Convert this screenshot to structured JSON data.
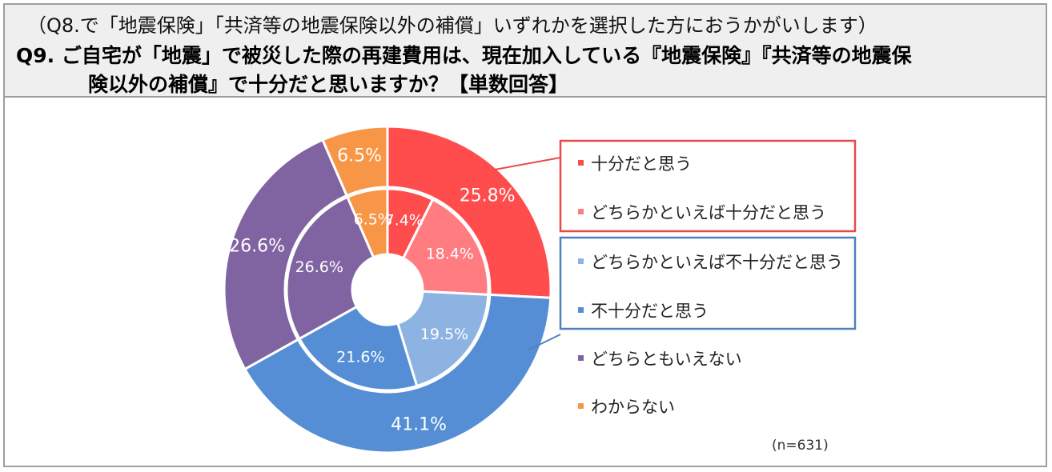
{
  "header": {
    "sub_condition": "（Q8.で「地震保険」「共済等の地震保険以外の補償」いずれかを選択した方におうかがいします）",
    "question_line1": "Q9. ご自宅が「地震」で被災した際の再建費用は、現在加入している『地震保険』『共済等の地震保",
    "question_line2": "険以外の補償』で十分だと思いますか？【単数回答】"
  },
  "chart_data": {
    "type": "donut",
    "note": "(n=631)",
    "outer_ring": {
      "slices": [
        {
          "label": "25.8%",
          "value": 25.8,
          "color": "#ff4d4d"
        },
        {
          "label": "41.1%",
          "value": 41.1,
          "color": "#558ed5"
        },
        {
          "label": "26.6%",
          "value": 26.6,
          "color": "#8064a2"
        },
        {
          "label": "6.5%",
          "value": 6.5,
          "color": "#f79646"
        }
      ]
    },
    "inner_ring": {
      "slices": [
        {
          "label": "7.4%",
          "value": 7.4,
          "color": "#ff4d4d"
        },
        {
          "label": "18.4%",
          "value": 18.4,
          "color": "#ff7c80"
        },
        {
          "label": "19.5%",
          "value": 19.5,
          "color": "#8db3e2"
        },
        {
          "label": "21.6%",
          "value": 21.6,
          "color": "#558ed5"
        },
        {
          "label": "26.6%",
          "value": 26.6,
          "color": "#8064a2"
        },
        {
          "label": "6.5%",
          "value": 6.5,
          "color": "#f79646"
        }
      ]
    },
    "legend": [
      {
        "label": "十分だと思う",
        "color": "#ff4d4d"
      },
      {
        "label": "どちらかといえば十分だと思う",
        "color": "#ff7c80"
      },
      {
        "label": "どちらかといえば不十分だと思う",
        "color": "#8db3e2"
      },
      {
        "label": "不十分だと思う",
        "color": "#558ed5"
      },
      {
        "label": "どちらともいえない",
        "color": "#8064a2"
      },
      {
        "label": "わからない",
        "color": "#f79646"
      }
    ],
    "group_box_colors": {
      "sufficient": "#e84a4a",
      "insufficient": "#4f81bd"
    }
  }
}
